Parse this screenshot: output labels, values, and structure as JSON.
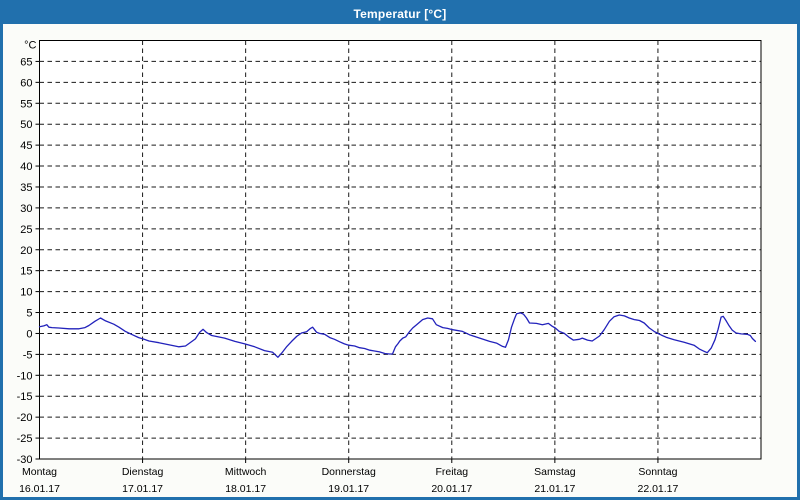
{
  "window": {
    "title": "Temperatur [°C]"
  },
  "colors": {
    "titlebar_bg": "#2170ad",
    "titlebar_text": "#ffffff",
    "window_border": "#2170ad",
    "plot_bg": "#ffffff",
    "plot_border": "#000000",
    "grid": "#1a1a1a",
    "axis_text": "#000000",
    "series_line": "#2222bb"
  },
  "chart_data": {
    "type": "line",
    "title": "Temperatur [°C]",
    "y_unit_label": "°C",
    "ylim": [
      -30,
      70
    ],
    "y_tick_step": 5,
    "y_ticks": [
      65,
      60,
      55,
      50,
      45,
      40,
      35,
      30,
      25,
      20,
      15,
      10,
      5,
      0,
      -5,
      -10,
      -15,
      -20,
      -25,
      -30
    ],
    "grid": "dashed",
    "hours_total": 168,
    "day_span_hours": 24,
    "x_days": [
      {
        "weekday": "Montag",
        "date": "16.01.17"
      },
      {
        "weekday": "Dienstag",
        "date": "17.01.17"
      },
      {
        "weekday": "Mittwoch",
        "date": "18.01.17"
      },
      {
        "weekday": "Donnerstag",
        "date": "19.01.17"
      },
      {
        "weekday": "Freitag",
        "date": "20.01.17"
      },
      {
        "weekday": "Samstag",
        "date": "21.01.17"
      },
      {
        "weekday": "Sonntag",
        "date": "22.01.17"
      }
    ],
    "series": [
      {
        "name": "Temperatur",
        "unit": "°C",
        "color": "#2222bb",
        "points_hours_temp": [
          [
            0,
            1.6
          ],
          [
            1,
            1.8
          ],
          [
            1.7,
            2.1
          ],
          [
            2.2,
            1.5
          ],
          [
            2.9,
            1.4
          ],
          [
            4.5,
            1.3
          ],
          [
            6.9,
            1.1
          ],
          [
            9.2,
            1.1
          ],
          [
            10.6,
            1.4
          ],
          [
            11.5,
            1.9
          ],
          [
            12.9,
            2.9
          ],
          [
            14.2,
            3.7
          ],
          [
            15.4,
            3.0
          ],
          [
            17.3,
            2.2
          ],
          [
            18.5,
            1.5
          ],
          [
            20,
            0.5
          ],
          [
            21.6,
            -0.3
          ],
          [
            23.1,
            -1.0
          ],
          [
            24.1,
            -1.3
          ],
          [
            25.5,
            -1.8
          ],
          [
            27.8,
            -2.2
          ],
          [
            30.1,
            -2.7
          ],
          [
            32.4,
            -3.2
          ],
          [
            34,
            -3.0
          ],
          [
            34.8,
            -2.4
          ],
          [
            36.3,
            -1.3
          ],
          [
            37.3,
            0.3
          ],
          [
            38.1,
            1.0
          ],
          [
            38.9,
            0.2
          ],
          [
            40.1,
            -0.5
          ],
          [
            43.1,
            -1.1
          ],
          [
            45.5,
            -1.9
          ],
          [
            47.8,
            -2.5
          ],
          [
            50.1,
            -3.2
          ],
          [
            52.4,
            -4.1
          ],
          [
            54.3,
            -4.5
          ],
          [
            55.5,
            -5.7
          ],
          [
            56.4,
            -4.7
          ],
          [
            57.6,
            -3.1
          ],
          [
            58.7,
            -1.9
          ],
          [
            59.9,
            -0.7
          ],
          [
            61,
            0.1
          ],
          [
            62.2,
            0.4
          ],
          [
            63.1,
            1.2
          ],
          [
            63.6,
            1.5
          ],
          [
            64.5,
            0.3
          ],
          [
            65.2,
            0
          ],
          [
            66.4,
            -0.2
          ],
          [
            67.6,
            -1.0
          ],
          [
            68.7,
            -1.4
          ],
          [
            69.9,
            -2.0
          ],
          [
            71,
            -2.5
          ],
          [
            72,
            -2.8
          ],
          [
            73.4,
            -3.0
          ],
          [
            74.5,
            -3.4
          ],
          [
            75.7,
            -3.6
          ],
          [
            76.9,
            -4.0
          ],
          [
            78,
            -4.2
          ],
          [
            79.2,
            -4.4
          ],
          [
            80.4,
            -4.8
          ],
          [
            81.5,
            -4.9
          ],
          [
            82.2,
            -4.9
          ],
          [
            82.9,
            -3.2
          ],
          [
            83.5,
            -2.4
          ],
          [
            83.9,
            -1.8
          ],
          [
            84.6,
            -1.1
          ],
          [
            85.3,
            -0.8
          ],
          [
            86.2,
            0.5
          ],
          [
            86.9,
            1.3
          ],
          [
            87.8,
            2.1
          ],
          [
            89.2,
            3.3
          ],
          [
            90.4,
            3.7
          ],
          [
            91.5,
            3.5
          ],
          [
            92.4,
            2.1
          ],
          [
            93.9,
            1.4
          ],
          [
            95,
            1.2
          ],
          [
            96.2,
            0.9
          ],
          [
            98.5,
            0.5
          ],
          [
            100.1,
            -0.3
          ],
          [
            102.5,
            -1.1
          ],
          [
            104.8,
            -1.9
          ],
          [
            106.4,
            -2.3
          ],
          [
            107.8,
            -3.1
          ],
          [
            108.5,
            -3.3
          ],
          [
            109.2,
            -1.5
          ],
          [
            109.9,
            1.5
          ],
          [
            110.6,
            3.5
          ],
          [
            111.1,
            4.7
          ],
          [
            112,
            4.9
          ],
          [
            112.7,
            4.6
          ],
          [
            113.4,
            3.7
          ],
          [
            114.1,
            2.5
          ],
          [
            115.7,
            2.4
          ],
          [
            117.1,
            2.1
          ],
          [
            118.5,
            2.4
          ],
          [
            119.4,
            1.7
          ],
          [
            120.1,
            1.3
          ],
          [
            121,
            0.5
          ],
          [
            122.2,
            0
          ],
          [
            123.4,
            -1.0
          ],
          [
            124.3,
            -1.6
          ],
          [
            125.7,
            -1.4
          ],
          [
            126.4,
            -1.1
          ],
          [
            127.6,
            -1.6
          ],
          [
            128.7,
            -1.8
          ],
          [
            130.4,
            -0.6
          ],
          [
            131.5,
            0.9
          ],
          [
            132.7,
            2.9
          ],
          [
            133.8,
            4.0
          ],
          [
            135,
            4.4
          ],
          [
            136.2,
            4.2
          ],
          [
            137.3,
            3.7
          ],
          [
            138.5,
            3.3
          ],
          [
            139.7,
            3.1
          ],
          [
            140.8,
            2.5
          ],
          [
            142,
            1.3
          ],
          [
            143.1,
            0.5
          ],
          [
            143.8,
            0.1
          ],
          [
            144.8,
            -0.4
          ],
          [
            145.9,
            -0.9
          ],
          [
            147.8,
            -1.5
          ],
          [
            150.1,
            -2.1
          ],
          [
            152.4,
            -2.8
          ],
          [
            153.6,
            -3.7
          ],
          [
            154.8,
            -4.3
          ],
          [
            155.5,
            -4.6
          ],
          [
            156.4,
            -3.5
          ],
          [
            157.3,
            -1.5
          ],
          [
            158,
            1.0
          ],
          [
            158.7,
            3.9
          ],
          [
            159.2,
            4.1
          ],
          [
            159.9,
            3.0
          ],
          [
            160.6,
            1.8
          ],
          [
            161.3,
            0.8
          ],
          [
            162.2,
            0.1
          ],
          [
            163.4,
            -0.1
          ],
          [
            164.8,
            -0.2
          ],
          [
            165.5,
            -0.5
          ],
          [
            166,
            -1.2
          ],
          [
            166.7,
            -1.9
          ]
        ]
      }
    ]
  }
}
